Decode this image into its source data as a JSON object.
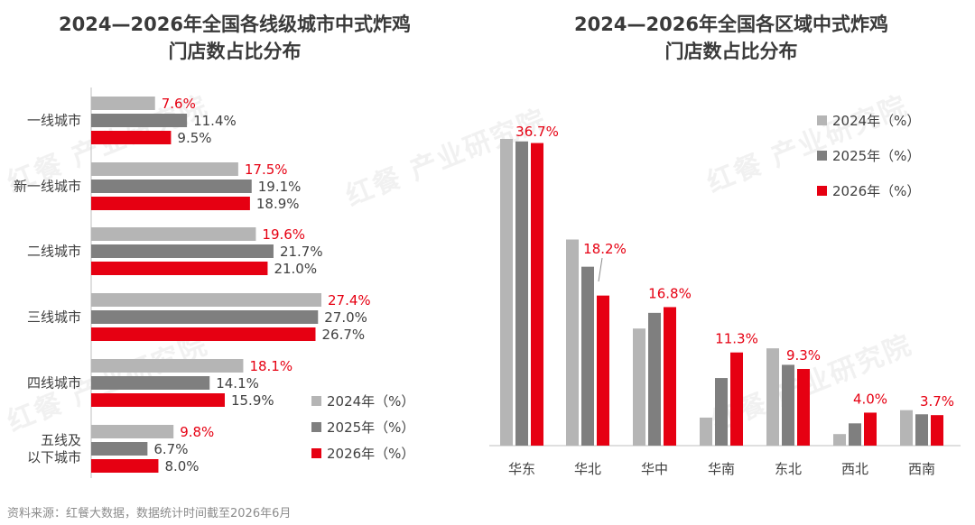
{
  "chart_data": [
    {
      "type": "bar",
      "orientation": "horizontal",
      "title": "2024—2026年全国各线级城市中式炸鸡\n门店数占比分布",
      "categories": [
        "一线城市",
        "新一线城市",
        "二线城市",
        "三线城市",
        "四线城市",
        "五线及\n以下城市"
      ],
      "series": [
        {
          "name": "2024年（%）",
          "color": "#b5b5b5",
          "label_color": "#e60012",
          "values": [
            7.6,
            17.5,
            19.6,
            27.4,
            18.1,
            9.8
          ],
          "labels": [
            "7.6%",
            "17.5%",
            "19.6%",
            "27.4%",
            "18.1%",
            "9.8%"
          ]
        },
        {
          "name": "2025年（%）",
          "color": "#7f7f7f",
          "label_color": "#404040",
          "values": [
            11.4,
            19.1,
            21.7,
            27.0,
            14.1,
            6.7
          ],
          "labels": [
            "11.4%",
            "19.1%",
            "21.7%",
            "27.0%",
            "14.1%",
            "6.7%"
          ]
        },
        {
          "name": "2026年（%）",
          "color": "#e60012",
          "label_color": "#404040",
          "values": [
            9.5,
            18.9,
            21.0,
            26.7,
            15.9,
            8.0
          ],
          "labels": [
            "9.5%",
            "18.9%",
            "21.0%",
            "26.7%",
            "15.9%",
            "8.0%"
          ]
        }
      ],
      "xlim": [
        0,
        28
      ],
      "legend_position": "bottom-right",
      "grid": false
    },
    {
      "type": "bar",
      "orientation": "vertical",
      "title": "2024—2026年全国各区域中式炸鸡\n门店数占比分布",
      "categories": [
        "华东",
        "华北",
        "华中",
        "华南",
        "东北",
        "西北",
        "西南"
      ],
      "series": [
        {
          "name": "2024年（%）",
          "color": "#b5b5b5",
          "values": [
            37.2,
            25.0,
            14.2,
            3.4,
            11.8,
            1.4,
            4.3
          ]
        },
        {
          "name": "2025年（%）",
          "color": "#7f7f7f",
          "values": [
            36.9,
            21.7,
            16.1,
            8.2,
            9.8,
            2.7,
            3.8
          ]
        },
        {
          "name": "2026年（%）",
          "color": "#e60012",
          "values": [
            36.7,
            18.2,
            16.8,
            11.3,
            9.3,
            4.0,
            3.7
          ],
          "labels": [
            "36.7%",
            "18.2%",
            "16.8%",
            "11.3%",
            "9.3%",
            "4.0%",
            "3.7%"
          ],
          "label_color": "#e60012"
        }
      ],
      "ylim": [
        0,
        37.2
      ],
      "legend_position": "top-right",
      "grid": false
    }
  ],
  "source": "资料来源：红餐大数据，数据统计时间截至2026年6月",
  "watermark": "红餐 产业研究院"
}
